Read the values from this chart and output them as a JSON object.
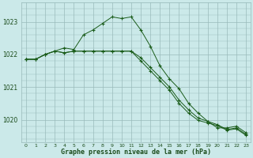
{
  "background_color": "#cbe9e9",
  "grid_color": "#99bbbb",
  "line_color": "#1a5c1a",
  "marker_color": "#1a5c1a",
  "title": "Graphe pression niveau de la mer (hPa)",
  "title_color": "#1a4b1a",
  "tick_color": "#1a4b1a",
  "hours": [
    0,
    1,
    2,
    3,
    4,
    5,
    6,
    7,
    8,
    9,
    10,
    11,
    12,
    13,
    14,
    15,
    16,
    17,
    18,
    19,
    20,
    21,
    22,
    23
  ],
  "series1": [
    1021.85,
    1021.85,
    1022.0,
    1022.1,
    1022.2,
    1022.15,
    1022.6,
    1022.75,
    1022.95,
    1023.15,
    1023.1,
    1023.15,
    1022.75,
    1022.25,
    1021.65,
    1021.25,
    1020.95,
    1020.5,
    1020.2,
    1019.95,
    1019.75,
    1019.75,
    1019.8,
    1019.6
  ],
  "series2": [
    1021.85,
    1021.85,
    1022.0,
    1022.1,
    1022.05,
    1022.1,
    1022.1,
    1022.1,
    1022.1,
    1022.1,
    1022.1,
    1022.1,
    1021.9,
    1021.6,
    1021.3,
    1021.0,
    1020.6,
    1020.3,
    1020.05,
    1019.95,
    1019.85,
    1019.7,
    1019.75,
    1019.55
  ],
  "series3": [
    1021.85,
    1021.85,
    1022.0,
    1022.1,
    1022.05,
    1022.1,
    1022.1,
    1022.1,
    1022.1,
    1022.1,
    1022.1,
    1022.1,
    1021.8,
    1021.5,
    1021.2,
    1020.9,
    1020.5,
    1020.2,
    1019.98,
    1019.9,
    1019.82,
    1019.68,
    1019.72,
    1019.52
  ],
  "ylim_min": 1019.3,
  "ylim_max": 1023.6,
  "yticks": [
    1020,
    1021,
    1022,
    1023
  ]
}
